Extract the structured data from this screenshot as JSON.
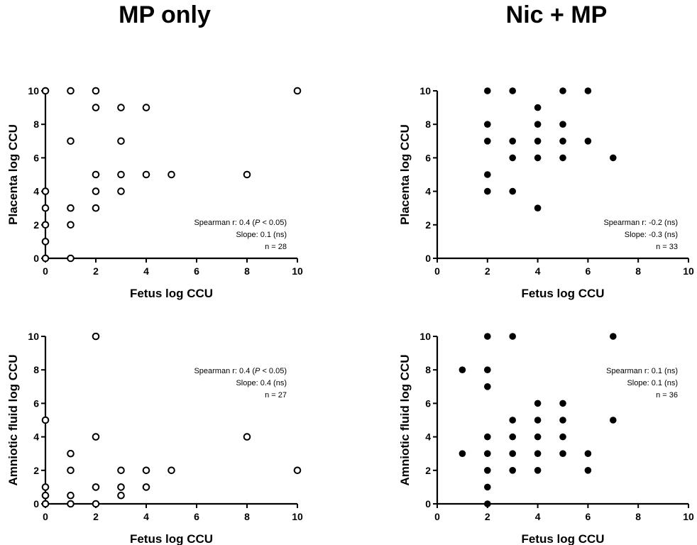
{
  "columns": {
    "left_title": "MP only",
    "right_title": "Nic + MP"
  },
  "chart_data": [
    {
      "type": "scatter",
      "column": "MP only",
      "xlabel": "Fetus log CCU",
      "ylabel": "Placenta log CCU",
      "xlim": [
        0,
        10
      ],
      "ylim": [
        0,
        10
      ],
      "xticks": [
        "0",
        "2",
        "4",
        "6",
        "8",
        "10"
      ],
      "yticks": [
        "0",
        "2",
        "4",
        "6",
        "8",
        "10"
      ],
      "marker": "open",
      "annotation": {
        "line1": "Spearman r: 0.4 (",
        "italic": "P",
        "line1_tail": " < 0.05)",
        "line2": "Slope: 0.1 (ns)",
        "line3": "n = 28"
      },
      "points": [
        [
          0,
          10
        ],
        [
          1,
          10
        ],
        [
          2,
          10
        ],
        [
          10,
          10
        ],
        [
          2,
          9
        ],
        [
          3,
          9
        ],
        [
          4,
          9
        ],
        [
          1,
          7
        ],
        [
          3,
          7
        ],
        [
          2,
          5
        ],
        [
          3,
          5
        ],
        [
          4,
          5
        ],
        [
          5,
          5
        ],
        [
          8,
          5
        ],
        [
          0,
          4
        ],
        [
          2,
          4
        ],
        [
          3,
          4
        ],
        [
          0,
          3
        ],
        [
          1,
          3
        ],
        [
          2,
          3
        ],
        [
          0,
          2
        ],
        [
          1,
          2
        ],
        [
          0,
          1
        ],
        [
          0,
          0
        ],
        [
          1,
          0
        ]
      ]
    },
    {
      "type": "scatter",
      "column": "Nic + MP",
      "xlabel": "Fetus log CCU",
      "ylabel": "Placenta log CCU",
      "xlim": [
        0,
        10
      ],
      "ylim": [
        0,
        10
      ],
      "xticks": [
        "0",
        "2",
        "4",
        "6",
        "8",
        "10"
      ],
      "yticks": [
        "0",
        "2",
        "4",
        "6",
        "8",
        "10"
      ],
      "marker": "filled",
      "annotation": {
        "line1": "Spearman r: -0.2 (ns)",
        "line2": "Slope: -0.3 (ns)",
        "line3": "n = 33"
      },
      "points": [
        [
          2,
          10
        ],
        [
          3,
          10
        ],
        [
          5,
          10
        ],
        [
          6,
          10
        ],
        [
          4,
          9
        ],
        [
          2,
          8
        ],
        [
          4,
          8
        ],
        [
          5,
          8
        ],
        [
          2,
          7
        ],
        [
          3,
          7
        ],
        [
          4,
          7
        ],
        [
          5,
          7
        ],
        [
          6,
          7
        ],
        [
          3,
          6
        ],
        [
          4,
          6
        ],
        [
          5,
          6
        ],
        [
          7,
          6
        ],
        [
          2,
          5
        ],
        [
          2,
          4
        ],
        [
          3,
          4
        ],
        [
          4,
          3
        ]
      ]
    },
    {
      "type": "scatter",
      "column": "MP only",
      "xlabel": "Fetus log CCU",
      "ylabel": "Amniotic fluid log CCU",
      "xlim": [
        0,
        10
      ],
      "ylim": [
        0,
        10
      ],
      "xticks": [
        "0",
        "2",
        "4",
        "6",
        "8",
        "10"
      ],
      "yticks": [
        "0",
        "2",
        "4",
        "6",
        "8",
        "10"
      ],
      "marker": "open",
      "annotation": {
        "line1": "Spearman r: 0.4 (",
        "italic": "P",
        "line1_tail": " < 0.05)",
        "line2": "Slope: 0.4 (ns)",
        "line3": "n = 27"
      },
      "points": [
        [
          2,
          10
        ],
        [
          0,
          5
        ],
        [
          2,
          4
        ],
        [
          8,
          4
        ],
        [
          1,
          3
        ],
        [
          1,
          2
        ],
        [
          3,
          2
        ],
        [
          4,
          2
        ],
        [
          5,
          2
        ],
        [
          10,
          2
        ],
        [
          0,
          1
        ],
        [
          2,
          1
        ],
        [
          3,
          1
        ],
        [
          4,
          1
        ],
        [
          0,
          0.5
        ],
        [
          1,
          0.5
        ],
        [
          3,
          0.5
        ],
        [
          0,
          0
        ],
        [
          1,
          0
        ],
        [
          2,
          0
        ]
      ]
    },
    {
      "type": "scatter",
      "column": "Nic + MP",
      "xlabel": "Fetus log CCU",
      "ylabel": "Amniotic fluid log CCU",
      "xlim": [
        0,
        10
      ],
      "ylim": [
        0,
        10
      ],
      "xticks": [
        "0",
        "2",
        "4",
        "6",
        "8",
        "10"
      ],
      "yticks": [
        "0",
        "2",
        "4",
        "6",
        "8",
        "10"
      ],
      "marker": "filled",
      "annotation": {
        "line1": "Spearman r: 0.1 (ns)",
        "line2": "Slope: 0.1 (ns)",
        "line3": "n = 36"
      },
      "points": [
        [
          2,
          10
        ],
        [
          3,
          10
        ],
        [
          7,
          10
        ],
        [
          1,
          8
        ],
        [
          2,
          8
        ],
        [
          2,
          7
        ],
        [
          4,
          6
        ],
        [
          5,
          6
        ],
        [
          3,
          5
        ],
        [
          4,
          5
        ],
        [
          5,
          5
        ],
        [
          7,
          5
        ],
        [
          2,
          4
        ],
        [
          3,
          4
        ],
        [
          4,
          4
        ],
        [
          5,
          4
        ],
        [
          1,
          3
        ],
        [
          2,
          3
        ],
        [
          3,
          3
        ],
        [
          4,
          3
        ],
        [
          5,
          3
        ],
        [
          6,
          3
        ],
        [
          2,
          2
        ],
        [
          3,
          2
        ],
        [
          4,
          2
        ],
        [
          6,
          2
        ],
        [
          2,
          1
        ],
        [
          2,
          0
        ]
      ]
    }
  ]
}
